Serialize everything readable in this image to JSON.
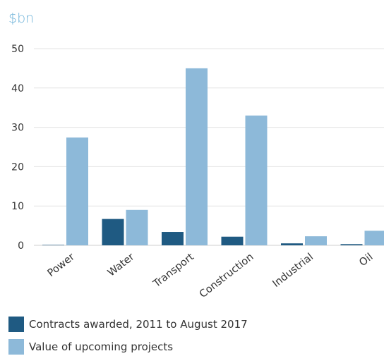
{
  "chart_data": {
    "type": "bar",
    "unit_label": "$bn",
    "title": "",
    "xlabel": "",
    "ylabel": "",
    "ylim": [
      0,
      50
    ],
    "yticks": [
      0,
      10,
      20,
      30,
      40,
      50
    ],
    "grid": true,
    "legend_position": "bottom-left",
    "categories": [
      "Power",
      "Water",
      "Transport",
      "Construction",
      "Industrial",
      "Oil"
    ],
    "series": [
      {
        "name": "Contracts awarded, 2011 to August 2017",
        "color": "#1f5a82",
        "values": [
          0.1,
          6.7,
          3.4,
          2.2,
          0.5,
          0.3
        ]
      },
      {
        "name": "Value of upcoming projects",
        "color": "#8db9d9",
        "values": [
          27.4,
          9.0,
          45.0,
          33.0,
          2.3,
          3.7
        ]
      }
    ],
    "colors": {
      "unit_label": "#6fb3d9",
      "gridline": "#e3e3e3",
      "axis": "#cfcfcf"
    }
  }
}
